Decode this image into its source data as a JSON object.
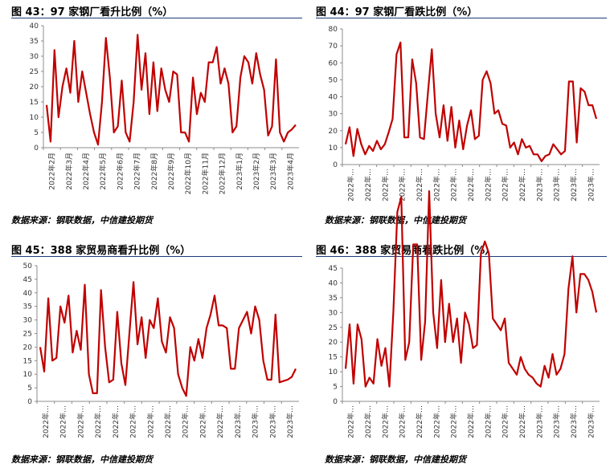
{
  "charts": [
    {
      "title": "图 43：97 家钢厂看升比例（%）",
      "source": "数据来源：钢联数据，中信建投期货",
      "chart_data": {
        "type": "line",
        "ylim": [
          0,
          40
        ],
        "yticks": [
          0,
          5,
          10,
          15,
          20,
          25,
          30,
          35,
          40
        ],
        "xtick_labels": [
          "2022年2月",
          "2022年3月",
          "2022年4月",
          "2022年5月",
          "2022年6月",
          "2022年7月",
          "2022年8月",
          "2022年9月",
          "2022年10月",
          "2022年11月",
          "2022年12月",
          "2023年1月",
          "2023年2月",
          "2023年3月",
          "2023年4月"
        ],
        "color": "#c00000",
        "series": [
          {
            "values": [
              14,
              2,
              32,
              10,
              20,
              26,
              18,
              35,
              15,
              25,
              18,
              11,
              5,
              1,
              15,
              36,
              23,
              5,
              7,
              22,
              5,
              2,
              15,
              37,
              19,
              31,
              11,
              28,
              12,
              26,
              19,
              15,
              25,
              24,
              5,
              5,
              2,
              23,
              11,
              18,
              15,
              28,
              28,
              33,
              21,
              26,
              21,
              5,
              7,
              23,
              30,
              28,
              21,
              31,
              24,
              19,
              4,
              7,
              29,
              5,
              2,
              5,
              6,
              7.5
            ]
          }
        ]
      }
    },
    {
      "title": "图 44：97 家钢厂看跌比例（%）",
      "source": "数据来源：钢联数据，中信建投期货",
      "chart_data": {
        "type": "line",
        "ylim": [
          0,
          80
        ],
        "yticks": [
          0,
          10,
          20,
          30,
          40,
          50,
          60,
          70,
          80
        ],
        "xtick_labels": [
          "2022年…",
          "2022年…",
          "2022年…",
          "2022年…",
          "2022年…",
          "2022年…",
          "2022年…",
          "2022年…",
          "2022年…",
          "2022年…",
          "2022年…",
          "2023年…",
          "2023年…",
          "2023年…",
          "2023年…"
        ],
        "color": "#c00000",
        "series": [
          {
            "values": [
              12,
              22,
              5,
              21,
              12,
              6,
              11,
              8,
              14,
              9,
              12,
              19,
              27,
              65,
              72,
              16,
              16,
              62,
              48,
              16,
              15,
              42,
              68,
              30,
              16,
              35,
              14,
              34,
              10,
              26,
              9,
              23,
              32,
              15,
              17,
              50,
              55,
              48,
              30,
              32,
              24,
              23,
              10,
              13,
              6,
              15,
              10,
              11,
              6,
              6,
              2,
              5,
              6,
              12,
              9,
              6,
              8,
              49,
              49,
              13,
              45,
              43,
              35,
              35,
              27
            ]
          }
        ]
      }
    },
    {
      "title": "图 45：388 家贸易商看升比例（%）",
      "source": "数据来源：钢联数据，中信建投期货",
      "chart_data": {
        "type": "line",
        "ylim": [
          0,
          50
        ],
        "yticks": [
          0,
          5,
          10,
          15,
          20,
          25,
          30,
          35,
          40,
          45,
          50
        ],
        "xtick_labels": [
          "2022年…",
          "2022年…",
          "2022年…",
          "2022年…",
          "2022年…",
          "2022年…",
          "2022年…",
          "2022年…",
          "2022年…",
          "2022年…",
          "2022年…",
          "2023年…",
          "2023年…",
          "2023年…",
          "2023年…"
        ],
        "color": "#c00000",
        "series": [
          {
            "values": [
              20,
              11,
              38,
              15,
              16,
              35,
              29,
              39,
              18,
              26,
              19,
              43,
              10,
              3,
              3,
              41,
              20,
              7,
              8,
              33,
              14,
              6,
              25,
              44,
              21,
              31,
              16,
              30,
              27,
              38,
              22,
              18,
              31,
              27,
              10,
              5,
              2,
              20,
              15,
              23,
              16,
              27,
              32,
              39,
              28,
              28,
              27,
              12,
              12,
              27,
              30,
              33,
              25,
              35,
              30,
              15,
              8,
              8,
              32,
              7,
              7.5,
              8,
              9,
              12
            ]
          }
        ]
      }
    },
    {
      "title": "图 46：388 家贸易商看跌比例（%）",
      "source": "数据来源：钢联数据，中信建投期货",
      "chart_data": {
        "type": "line",
        "ylim": [
          0,
          80
        ],
        "yticks": [
          0,
          5,
          10,
          15,
          20,
          25,
          30,
          35,
          40,
          45
        ],
        "xtick_labels": [
          "2022年…",
          "2022年…",
          "2022年…",
          "2022年…",
          "2022年…",
          "2022年…",
          "2022年…",
          "2022年…",
          "2022年…",
          "2022年…",
          "2022年…",
          "2023年…",
          "2023年…",
          "2023年…",
          "2023年…"
        ],
        "color": "#c00000",
        "series": [
          {
            "values": [
              11,
              26,
              6,
              26,
              21,
              5,
              8,
              6,
              21,
              12,
              18,
              5,
              30,
              64,
              69,
              14,
              20,
              53,
              53,
              14,
              27,
              71,
              30,
              18,
              41,
              20,
              33,
              20,
              28,
              13,
              30,
              26,
              18,
              19,
              50,
              54,
              50,
              28,
              26,
              24,
              28,
              13,
              11,
              9,
              15,
              11,
              9,
              8,
              6,
              5,
              12,
              8,
              16,
              9,
              11,
              16,
              38,
              49,
              30,
              43,
              43,
              41,
              37,
              30
            ]
          }
        ]
      }
    }
  ]
}
